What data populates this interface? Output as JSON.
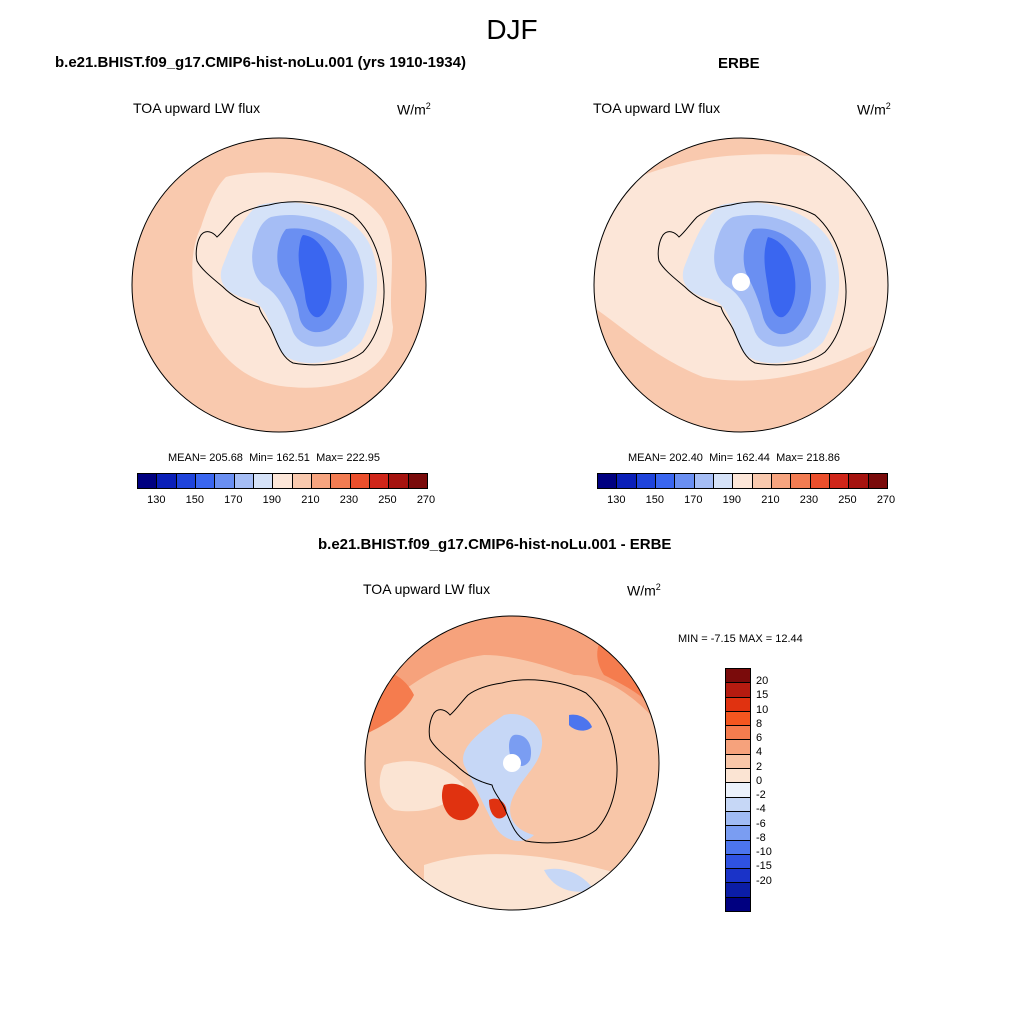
{
  "title": "DJF",
  "panels": {
    "model": {
      "title": "b.e21.BHIST.f09_g17.CMIP6-hist-noLu.001 (yrs 1910-1934)",
      "variable": "TOA upward LW flux",
      "units_base": "W/m",
      "units_exp": "2",
      "mean_label": "MEAN=",
      "mean": "205.68",
      "min_label": "Min=",
      "min": "162.51",
      "max_label": "Max=",
      "max": "222.95"
    },
    "obs": {
      "title": "ERBE",
      "variable": "TOA upward LW flux",
      "units_base": "W/m",
      "units_exp": "2",
      "mean_label": "MEAN=",
      "mean": "202.40",
      "min_label": "Min=",
      "min": "162.44",
      "max_label": "Max=",
      "max": "218.86"
    },
    "diff": {
      "title": "b.e21.BHIST.f09_g17.CMIP6-hist-noLu.001 - ERBE",
      "variable": "TOA upward LW flux",
      "units_base": "W/m",
      "units_exp": "2",
      "min_label": "MIN =",
      "min": "-7.15",
      "max_label": "MAX =",
      "max": "12.44"
    }
  },
  "colorbar_abs": {
    "colors": [
      "#000080",
      "#0a1fb8",
      "#1f44db",
      "#3a66f0",
      "#6a8ff2",
      "#a5bdf5",
      "#d5e2f8",
      "#fce6d8",
      "#f9c9ae",
      "#f6a47f",
      "#f27c52",
      "#ea4f2c",
      "#d0261a",
      "#a5130f",
      "#7a0b0b"
    ],
    "ticks": [
      "130",
      "150",
      "170",
      "190",
      "210",
      "230",
      "250",
      "270"
    ]
  },
  "colorbar_diff": {
    "colors": [
      "#7a0b0b",
      "#b51b10",
      "#e03210",
      "#f4561f",
      "#f57c4e",
      "#f6a27c",
      "#f8c6a8",
      "#fbe4d3",
      "#ebf1fb",
      "#c6d7f6",
      "#a0bbf4",
      "#7a9df2",
      "#4c75ee",
      "#2f52e2",
      "#1a33c8",
      "#0b1da6",
      "#000080"
    ],
    "ticks": [
      "20",
      "15",
      "10",
      "8",
      "6",
      "4",
      "2",
      "0",
      "-2",
      "-4",
      "-6",
      "-8",
      "-10",
      "-15",
      "-20"
    ]
  },
  "map_colors": {
    "ocean_warm": "#f9c9ae",
    "ocean_light": "#fce6d8",
    "ice_1": "#d5e2f8",
    "ice_2": "#a5bdf5",
    "ice_3": "#6a8ff2",
    "ice_4": "#3a66f0",
    "diff_pos1": "#f8c6a8",
    "diff_pos2": "#f6a27c",
    "diff_pos3": "#f57c4e",
    "diff_neg1": "#c6d7f6",
    "diff_neg2": "#7a9df2"
  }
}
